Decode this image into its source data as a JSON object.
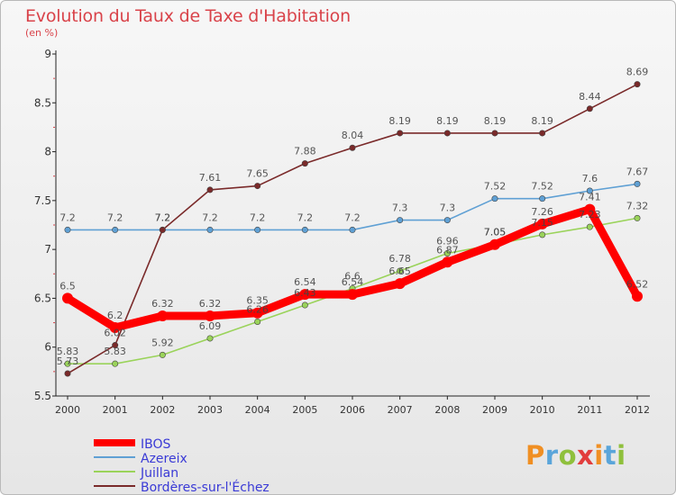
{
  "chart_data": {
    "type": "line",
    "title": "Evolution du Taux de Taxe d'Habitation",
    "subtitle": "(en %)",
    "x": [
      "2000",
      "2001",
      "2002",
      "2003",
      "2004",
      "2005",
      "2006",
      "2007",
      "2008",
      "2009",
      "2010",
      "2011",
      "2012"
    ],
    "ylim": [
      5.5,
      9
    ],
    "yticks": [
      "5.5",
      "6",
      "6.5",
      "7",
      "7.5",
      "8",
      "8.5",
      "9"
    ],
    "grid": false,
    "legend_position": "bottom-left",
    "series": [
      {
        "name": "IBOS",
        "color": "#ff0000",
        "thick": true,
        "values": [
          6.5,
          6.2,
          6.32,
          6.32,
          6.35,
          6.54,
          6.54,
          6.65,
          6.87,
          7.05,
          7.26,
          7.41,
          6.52
        ],
        "labels": [
          "6.5",
          "6.2",
          "6.32",
          "6.32",
          "6.35",
          "6.54",
          "6.54",
          "6.65",
          "6.87",
          "7.05",
          "7.26",
          "7.41",
          "6.52"
        ]
      },
      {
        "name": "Azereix",
        "color": "#5fa0d4",
        "thick": false,
        "values": [
          7.2,
          7.2,
          7.2,
          7.2,
          7.2,
          7.2,
          7.2,
          7.3,
          7.3,
          7.52,
          7.52,
          7.6,
          7.67
        ],
        "labels": [
          "7.2",
          "7.2",
          "7.2",
          "7.2",
          "7.2",
          "7.2",
          "7.2",
          "7.3",
          "7.3",
          "7.52",
          "7.52",
          "7.6",
          "7.67"
        ]
      },
      {
        "name": "Juillan",
        "color": "#9ad35a",
        "thick": false,
        "values": [
          5.83,
          5.83,
          5.92,
          6.09,
          6.26,
          6.43,
          6.6,
          6.78,
          6.96,
          7.05,
          7.15,
          7.23,
          7.32
        ],
        "labels": [
          "5.83",
          "5.83",
          "5.92",
          "6.09",
          "6.26",
          "6.43",
          "6.6",
          "6.78",
          "6.96",
          "7.05",
          "7.15",
          "7.23",
          "7.32"
        ]
      },
      {
        "name": "Bordères-sur-l'Échez",
        "color": "#7a2a2a",
        "thick": false,
        "values": [
          5.73,
          6.02,
          7.2,
          7.61,
          7.65,
          7.88,
          8.04,
          8.19,
          8.19,
          8.19,
          8.19,
          8.44,
          8.69
        ],
        "labels": [
          "5.73",
          "6.02",
          "7.2",
          "7.61",
          "7.65",
          "7.88",
          "8.04",
          "8.19",
          "8.19",
          "8.19",
          "8.19",
          "8.44",
          "8.69"
        ]
      }
    ]
  },
  "logo": {
    "letters": [
      "P",
      "r",
      "o",
      "x",
      "i",
      "t",
      "i"
    ]
  }
}
